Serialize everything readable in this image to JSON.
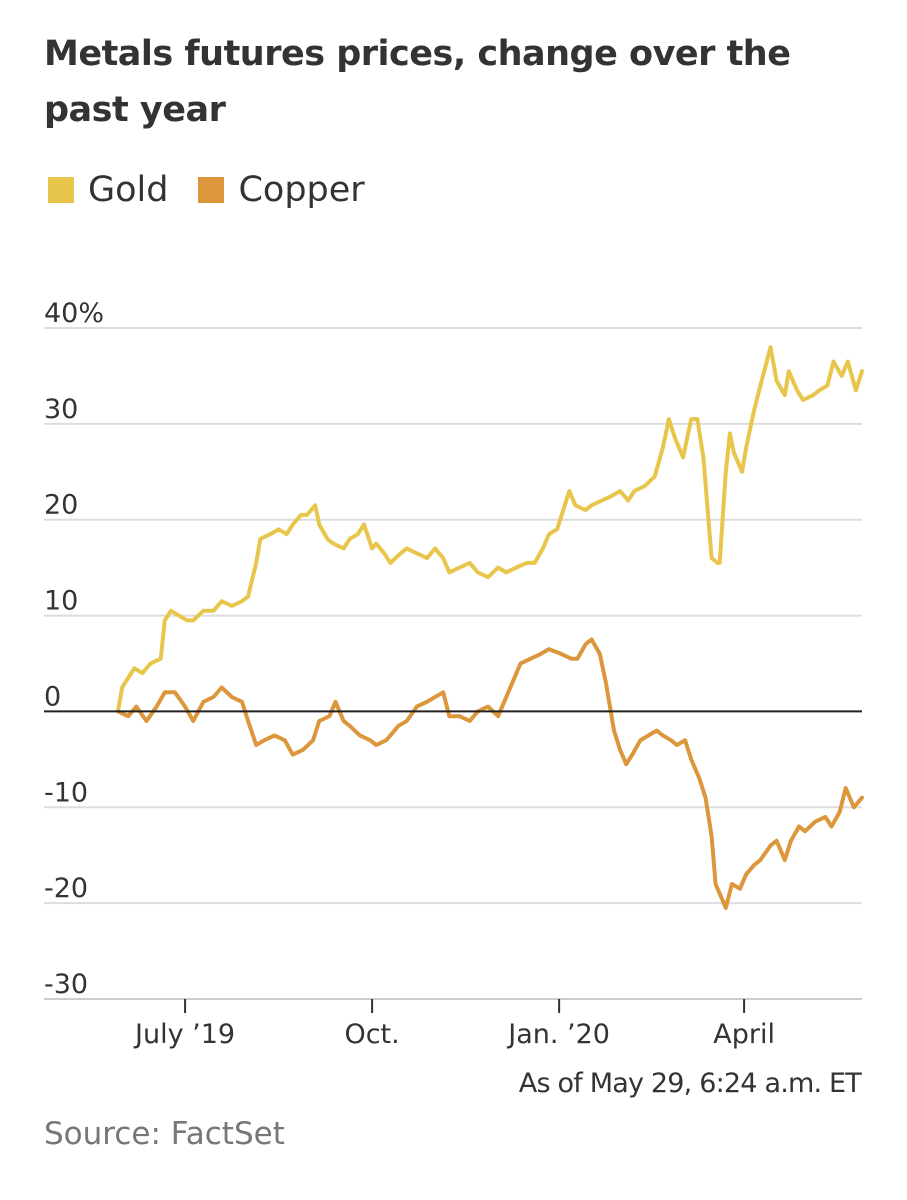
{
  "chart_data": {
    "type": "line",
    "title": "Metals futures prices, change over the past year",
    "xlabel": "",
    "ylabel": "",
    "ylim": [
      -30,
      40
    ],
    "yticks": [
      40,
      30,
      20,
      10,
      0,
      -10,
      -20,
      -30
    ],
    "ytick_labels": [
      "40%",
      "30",
      "20",
      "10",
      "0",
      "-10",
      "-20",
      "-30"
    ],
    "xlim": [
      "2019-05-29",
      "2020-05-29"
    ],
    "xticks": [
      {
        "date": "2019-07-01",
        "label": "July ’19"
      },
      {
        "date": "2019-10-01",
        "label": "Oct."
      },
      {
        "date": "2020-01-01",
        "label": "Jan. ’20"
      },
      {
        "date": "2020-04-01",
        "label": "April"
      }
    ],
    "legend": "top-left",
    "grid": true,
    "series": [
      {
        "name": "Gold",
        "color": "#e8c54b",
        "points": [
          [
            "2019-05-29",
            0
          ],
          [
            "2019-05-31",
            2.5
          ],
          [
            "2019-06-03",
            3.5
          ],
          [
            "2019-06-06",
            4.5
          ],
          [
            "2019-06-10",
            4.0
          ],
          [
            "2019-06-14",
            5.0
          ],
          [
            "2019-06-19",
            5.5
          ],
          [
            "2019-06-21",
            9.5
          ],
          [
            "2019-06-24",
            10.5
          ],
          [
            "2019-06-28",
            10.0
          ],
          [
            "2019-07-02",
            9.5
          ],
          [
            "2019-07-05",
            9.5
          ],
          [
            "2019-07-10",
            10.5
          ],
          [
            "2019-07-15",
            10.5
          ],
          [
            "2019-07-19",
            11.5
          ],
          [
            "2019-07-24",
            11.0
          ],
          [
            "2019-07-29",
            11.5
          ],
          [
            "2019-08-01",
            12.0
          ],
          [
            "2019-08-05",
            15.5
          ],
          [
            "2019-08-07",
            18.0
          ],
          [
            "2019-08-12",
            18.5
          ],
          [
            "2019-08-16",
            19.0
          ],
          [
            "2019-08-20",
            18.5
          ],
          [
            "2019-08-23",
            19.5
          ],
          [
            "2019-08-27",
            20.5
          ],
          [
            "2019-08-30",
            20.5
          ],
          [
            "2019-09-03",
            21.5
          ],
          [
            "2019-09-05",
            19.5
          ],
          [
            "2019-09-09",
            18.0
          ],
          [
            "2019-09-12",
            17.5
          ],
          [
            "2019-09-17",
            17.0
          ],
          [
            "2019-09-20",
            18.0
          ],
          [
            "2019-09-24",
            18.5
          ],
          [
            "2019-09-27",
            19.5
          ],
          [
            "2019-10-01",
            17.0
          ],
          [
            "2019-10-03",
            17.5
          ],
          [
            "2019-10-07",
            16.5
          ],
          [
            "2019-10-10",
            15.5
          ],
          [
            "2019-10-15",
            16.5
          ],
          [
            "2019-10-18",
            17.0
          ],
          [
            "2019-10-23",
            16.5
          ],
          [
            "2019-10-28",
            16.0
          ],
          [
            "2019-11-01",
            17.0
          ],
          [
            "2019-11-05",
            16.0
          ],
          [
            "2019-11-08",
            14.5
          ],
          [
            "2019-11-13",
            15.0
          ],
          [
            "2019-11-18",
            15.5
          ],
          [
            "2019-11-22",
            14.5
          ],
          [
            "2019-11-27",
            14.0
          ],
          [
            "2019-12-02",
            15.0
          ],
          [
            "2019-12-06",
            14.5
          ],
          [
            "2019-12-11",
            15.0
          ],
          [
            "2019-12-16",
            15.5
          ],
          [
            "2019-12-20",
            15.5
          ],
          [
            "2019-12-24",
            17.0
          ],
          [
            "2019-12-27",
            18.5
          ],
          [
            "2019-12-31",
            19.0
          ],
          [
            "2020-01-03",
            21.0
          ],
          [
            "2020-01-06",
            23.0
          ],
          [
            "2020-01-09",
            21.5
          ],
          [
            "2020-01-14",
            21.0
          ],
          [
            "2020-01-17",
            21.5
          ],
          [
            "2020-01-22",
            22.0
          ],
          [
            "2020-01-27",
            22.5
          ],
          [
            "2020-01-31",
            23.0
          ],
          [
            "2020-02-04",
            22.0
          ],
          [
            "2020-02-07",
            23.0
          ],
          [
            "2020-02-12",
            23.5
          ],
          [
            "2020-02-17",
            24.5
          ],
          [
            "2020-02-21",
            27.5
          ],
          [
            "2020-02-24",
            30.5
          ],
          [
            "2020-02-27",
            28.5
          ],
          [
            "2020-03-02",
            26.5
          ],
          [
            "2020-03-06",
            30.5
          ],
          [
            "2020-03-09",
            30.5
          ],
          [
            "2020-03-12",
            26.5
          ],
          [
            "2020-03-16",
            16.0
          ],
          [
            "2020-03-19",
            15.5
          ],
          [
            "2020-03-20",
            15.5
          ],
          [
            "2020-03-23",
            25.0
          ],
          [
            "2020-03-25",
            29.0
          ],
          [
            "2020-03-27",
            27.0
          ],
          [
            "2020-03-31",
            25.0
          ],
          [
            "2020-04-02",
            27.5
          ],
          [
            "2020-04-06",
            31.5
          ],
          [
            "2020-04-09",
            34.0
          ],
          [
            "2020-04-14",
            38.0
          ],
          [
            "2020-04-17",
            34.5
          ],
          [
            "2020-04-21",
            33.0
          ],
          [
            "2020-04-23",
            35.5
          ],
          [
            "2020-04-27",
            33.5
          ],
          [
            "2020-04-30",
            32.5
          ],
          [
            "2020-05-05",
            33.0
          ],
          [
            "2020-05-08",
            33.5
          ],
          [
            "2020-05-12",
            34.0
          ],
          [
            "2020-05-15",
            36.5
          ],
          [
            "2020-05-19",
            35.0
          ],
          [
            "2020-05-22",
            36.5
          ],
          [
            "2020-05-26",
            33.5
          ],
          [
            "2020-05-29",
            35.5
          ]
        ]
      },
      {
        "name": "Copper",
        "color": "#dc963c",
        "points": [
          [
            "2019-05-29",
            0
          ],
          [
            "2019-06-03",
            -0.5
          ],
          [
            "2019-06-07",
            0.5
          ],
          [
            "2019-06-12",
            -1.0
          ],
          [
            "2019-06-17",
            0.5
          ],
          [
            "2019-06-21",
            2.0
          ],
          [
            "2019-06-26",
            2.0
          ],
          [
            "2019-07-01",
            0.5
          ],
          [
            "2019-07-05",
            -1.0
          ],
          [
            "2019-07-10",
            1.0
          ],
          [
            "2019-07-15",
            1.5
          ],
          [
            "2019-07-19",
            2.5
          ],
          [
            "2019-07-24",
            1.5
          ],
          [
            "2019-07-29",
            1.0
          ],
          [
            "2019-08-01",
            -1.0
          ],
          [
            "2019-08-05",
            -3.5
          ],
          [
            "2019-08-09",
            -3.0
          ],
          [
            "2019-08-14",
            -2.5
          ],
          [
            "2019-08-19",
            -3.0
          ],
          [
            "2019-08-23",
            -4.5
          ],
          [
            "2019-08-28",
            -4.0
          ],
          [
            "2019-09-02",
            -3.0
          ],
          [
            "2019-09-05",
            -1.0
          ],
          [
            "2019-09-10",
            -0.5
          ],
          [
            "2019-09-13",
            1.0
          ],
          [
            "2019-09-17",
            -1.0
          ],
          [
            "2019-09-20",
            -1.5
          ],
          [
            "2019-09-25",
            -2.5
          ],
          [
            "2019-09-30",
            -3.0
          ],
          [
            "2019-10-03",
            -3.5
          ],
          [
            "2019-10-08",
            -3.0
          ],
          [
            "2019-10-14",
            -1.5
          ],
          [
            "2019-10-18",
            -1.0
          ],
          [
            "2019-10-23",
            0.5
          ],
          [
            "2019-10-28",
            1.0
          ],
          [
            "2019-11-01",
            1.5
          ],
          [
            "2019-11-05",
            2.0
          ],
          [
            "2019-11-08",
            -0.5
          ],
          [
            "2019-11-13",
            -0.5
          ],
          [
            "2019-11-18",
            -1.0
          ],
          [
            "2019-11-22",
            0.0
          ],
          [
            "2019-11-27",
            0.5
          ],
          [
            "2019-12-02",
            -0.5
          ],
          [
            "2019-12-05",
            1.0
          ],
          [
            "2019-12-10",
            3.5
          ],
          [
            "2019-12-13",
            5.0
          ],
          [
            "2019-12-18",
            5.5
          ],
          [
            "2019-12-23",
            6.0
          ],
          [
            "2019-12-27",
            6.5
          ],
          [
            "2020-01-02",
            6.0
          ],
          [
            "2020-01-07",
            5.5
          ],
          [
            "2020-01-10",
            5.5
          ],
          [
            "2020-01-14",
            7.0
          ],
          [
            "2020-01-17",
            7.5
          ],
          [
            "2020-01-21",
            6.0
          ],
          [
            "2020-01-24",
            3.0
          ],
          [
            "2020-01-28",
            -2.0
          ],
          [
            "2020-01-31",
            -4.0
          ],
          [
            "2020-02-03",
            -5.5
          ],
          [
            "2020-02-06",
            -4.5
          ],
          [
            "2020-02-10",
            -3.0
          ],
          [
            "2020-02-14",
            -2.5
          ],
          [
            "2020-02-18",
            -2.0
          ],
          [
            "2020-02-21",
            -2.5
          ],
          [
            "2020-02-25",
            -3.0
          ],
          [
            "2020-02-28",
            -3.5
          ],
          [
            "2020-03-03",
            -3.0
          ],
          [
            "2020-03-06",
            -5.0
          ],
          [
            "2020-03-10",
            -7.0
          ],
          [
            "2020-03-13",
            -9.0
          ],
          [
            "2020-03-16",
            -13.0
          ],
          [
            "2020-03-18",
            -18.0
          ],
          [
            "2020-03-20",
            -19.0
          ],
          [
            "2020-03-23",
            -20.5
          ],
          [
            "2020-03-26",
            -18.0
          ],
          [
            "2020-03-30",
            -18.5
          ],
          [
            "2020-04-02",
            -17.0
          ],
          [
            "2020-04-06",
            -16.0
          ],
          [
            "2020-04-09",
            -15.5
          ],
          [
            "2020-04-14",
            -14.0
          ],
          [
            "2020-04-17",
            -13.5
          ],
          [
            "2020-04-21",
            -15.5
          ],
          [
            "2020-04-24",
            -13.5
          ],
          [
            "2020-04-28",
            -12.0
          ],
          [
            "2020-05-01",
            -12.5
          ],
          [
            "2020-05-06",
            -11.5
          ],
          [
            "2020-05-11",
            -11.0
          ],
          [
            "2020-05-14",
            -12.0
          ],
          [
            "2020-05-18",
            -10.5
          ],
          [
            "2020-05-21",
            -8.0
          ],
          [
            "2020-05-25",
            -10.0
          ],
          [
            "2020-05-29",
            -9.0
          ]
        ]
      }
    ]
  },
  "footer": {
    "as_of": "As of May 29, 6:24 a.m. ET",
    "source": "Source: FactSet"
  }
}
